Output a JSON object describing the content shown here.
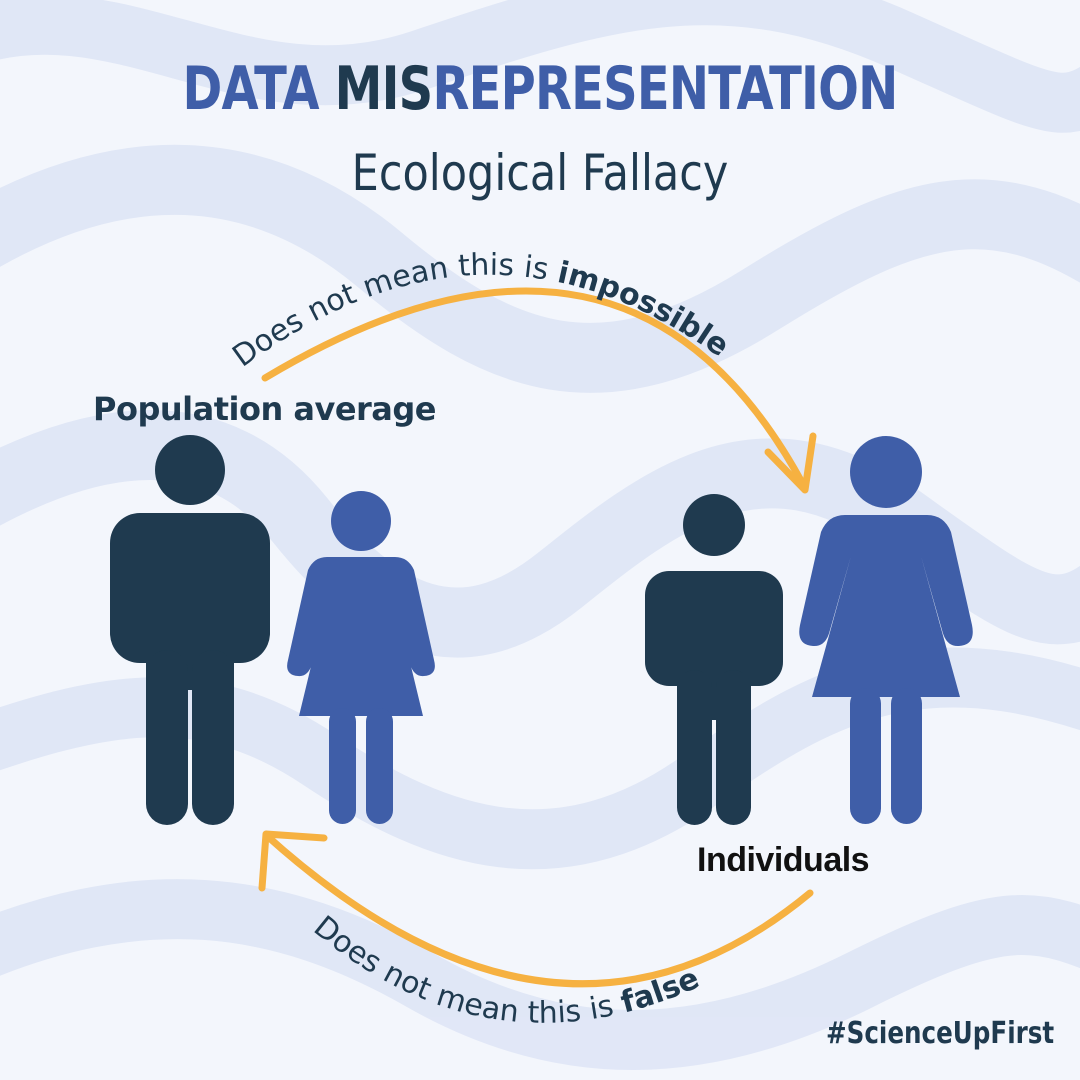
{
  "title": {
    "part1": "DATA ",
    "part2": "MIS",
    "part3": "REPRESENTATION",
    "subtitle": "Ecological Fallacy"
  },
  "labels": {
    "population_average": "Population average",
    "individuals": "Individuals"
  },
  "arrows": {
    "top": {
      "text": "Does not mean this is ",
      "emphasis": "impossible"
    },
    "bottom": {
      "text": "Does not mean this is ",
      "emphasis": "false"
    }
  },
  "hashtag": "#ScienceUpFirst",
  "colors": {
    "background": "#f3f6fc",
    "wave": "#dfe6f6",
    "navy": "#1f3a4f",
    "blue": "#3f5ea8",
    "arrow": "#f6b141"
  },
  "figures": [
    {
      "group": "population-average",
      "type": "man",
      "color": "navy"
    },
    {
      "group": "population-average",
      "type": "woman",
      "color": "blue"
    },
    {
      "group": "individuals",
      "type": "man",
      "color": "navy"
    },
    {
      "group": "individuals",
      "type": "woman",
      "color": "blue"
    }
  ]
}
